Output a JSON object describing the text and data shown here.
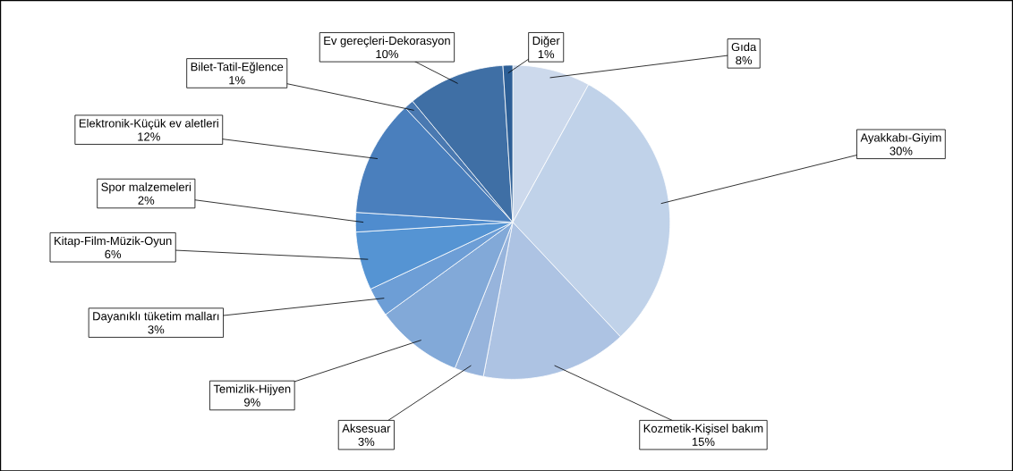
{
  "chart_data": {
    "type": "pie",
    "categories": [
      "Gıda",
      "Ayakkabı-Giyim",
      "Kozmetik-Kişisel bakım",
      "Aksesuar",
      "Temizlik-Hijyen",
      "Dayanıklı tüketim malları",
      "Kitap-Film-Müzik-Oyun",
      "Spor malzemeleri",
      "Elektronik-Küçük ev aletleri",
      "Bilet-Tatil-Eğlence",
      "Ev gereçleri-Dekorasyon",
      "Diğer"
    ],
    "values": [
      8,
      30,
      15,
      3,
      9,
      3,
      6,
      2,
      12,
      1,
      10,
      1
    ],
    "value_labels": [
      "8%",
      "30%",
      "15%",
      "3%",
      "9%",
      "3%",
      "6%",
      "2%",
      "12%",
      "1%",
      "10%",
      "1%"
    ],
    "colors": [
      "#ccd9ec",
      "#c0d2e9",
      "#adc3e3",
      "#97b4dc",
      "#82a9d8",
      "#6d9ed6",
      "#5594d3",
      "#4f8cce",
      "#4a7fbd",
      "#4a79b1",
      "#3f6fa5",
      "#2d5f96"
    ]
  }
}
